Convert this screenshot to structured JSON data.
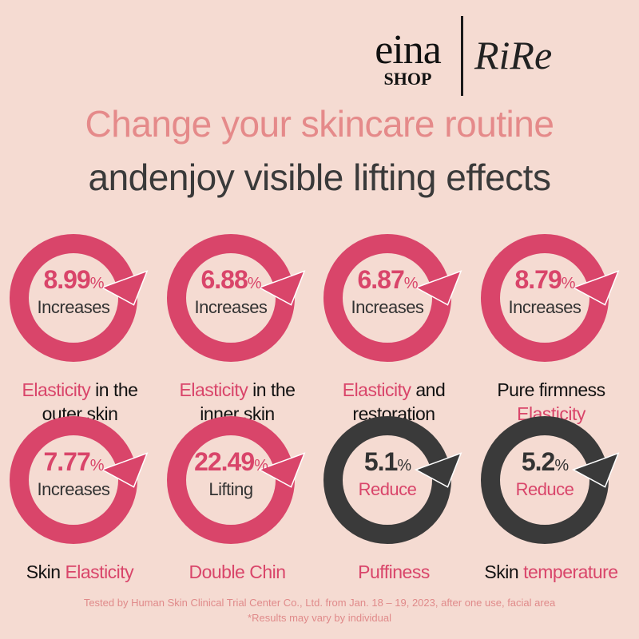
{
  "logos": {
    "eina": "eina",
    "eina_sub": "SHOP",
    "rire": "RiRe"
  },
  "headline": {
    "line1": "Change your skincare routine",
    "line2": "andenjoy visible lifting effects"
  },
  "colors": {
    "accent": "#d9456a",
    "dark": "#3a3a3a"
  },
  "items": [
    {
      "value": "8.99",
      "unit": "%",
      "verb": "Increases",
      "type": "increase",
      "cap": [
        {
          "t": "Elasticity",
          "hl": true
        },
        {
          "t": " in the",
          "hl": false
        },
        {
          "t": "outer skin",
          "hl": false,
          "br": true
        }
      ]
    },
    {
      "value": "6.88",
      "unit": "%",
      "verb": "Increases",
      "type": "increase",
      "cap": [
        {
          "t": "Elasticity",
          "hl": true
        },
        {
          "t": " in the",
          "hl": false
        },
        {
          "t": "inner skin",
          "hl": false,
          "br": true
        }
      ]
    },
    {
      "value": "6.87",
      "unit": "%",
      "verb": "Increases",
      "type": "increase",
      "cap": [
        {
          "t": "Elasticity",
          "hl": true
        },
        {
          "t": " and",
          "hl": false
        },
        {
          "t": "restoration",
          "hl": false,
          "br": true
        }
      ]
    },
    {
      "value": "8.79",
      "unit": "%",
      "verb": "Increases",
      "type": "increase",
      "cap": [
        {
          "t": "Pure firmness",
          "hl": false
        },
        {
          "t": "Elasticity",
          "hl": true,
          "br": true
        }
      ]
    },
    {
      "value": "7.77",
      "unit": "%",
      "verb": "Increases",
      "type": "increase",
      "cap": [
        {
          "t": "Skin ",
          "hl": false
        },
        {
          "t": "Elasticity",
          "hl": true
        }
      ]
    },
    {
      "value": "22.49",
      "unit": "%",
      "verb": "Lifting",
      "type": "increase",
      "cap": [
        {
          "t": "Double Chin",
          "hl": true
        }
      ]
    },
    {
      "value": "5.1",
      "unit": "%",
      "verb": "Reduce",
      "type": "reduce",
      "cap": [
        {
          "t": "Puffiness",
          "hl": true
        }
      ]
    },
    {
      "value": "5.2",
      "unit": "%",
      "verb": "Reduce",
      "type": "reduce",
      "cap": [
        {
          "t": "Skin ",
          "hl": false
        },
        {
          "t": "temperature",
          "hl": true
        }
      ]
    }
  ],
  "footnote": {
    "line1": "Tested by Human Skin Clinical Trial Center Co., Ltd. from Jan. 18 – 19, 2023, after one use, facial area",
    "line2": "*Results may vary by individual"
  }
}
